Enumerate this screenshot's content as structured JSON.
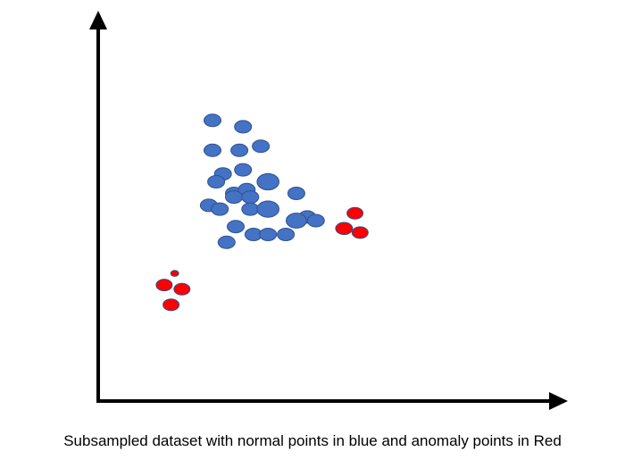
{
  "caption": "Subsampled dataset with normal points in blue and anomaly points in Red",
  "colors": {
    "normal_fill": "#4472C4",
    "normal_stroke": "#2F528F",
    "anomaly_fill": "#FF0000",
    "anomaly_stroke": "#2F528F",
    "axis": "#000000"
  },
  "chart_data": {
    "type": "scatter",
    "title": "",
    "xlabel": "",
    "ylabel": "",
    "xlim": [
      0,
      100
    ],
    "ylim": [
      0,
      100
    ],
    "grid": false,
    "legend": "none",
    "series": [
      {
        "category": "normal",
        "x": [
          25.1,
          31.8,
          25.1,
          31.0,
          35.7,
          27.4,
          31.8,
          25.9,
          29.8,
          32.6,
          37.3,
          43.5,
          24.3,
          29.8,
          33.4,
          26.7,
          33.4,
          37.3,
          45.9,
          43.5,
          47.8,
          30.2,
          34.1,
          37.3,
          41.2,
          28.2
        ],
        "y": [
          75.0,
          73.3,
          67.0,
          67.0,
          68.1,
          60.7,
          61.8,
          58.6,
          55.5,
          56.5,
          58.6,
          55.5,
          52.3,
          54.5,
          54.5,
          51.3,
          51.3,
          51.3,
          49.2,
          48.2,
          48.2,
          46.6,
          44.5,
          44.5,
          44.5,
          42.4
        ],
        "size": [
          1,
          1,
          1,
          1,
          1,
          1,
          1,
          1,
          1,
          1,
          1.3,
          1,
          1,
          1,
          1,
          1,
          1,
          1.3,
          1,
          1.2,
          1,
          1,
          1,
          1,
          1,
          1
        ]
      },
      {
        "category": "anomaly",
        "x": [
          56.4,
          54.0,
          57.5,
          16.8,
          14.5,
          18.4,
          16.0
        ],
        "y": [
          50.2,
          46.1,
          45.0,
          34.1,
          31.0,
          29.9,
          25.7
        ],
        "size": [
          1,
          1.05,
          1,
          0.5,
          1,
          1,
          1
        ]
      }
    ]
  }
}
